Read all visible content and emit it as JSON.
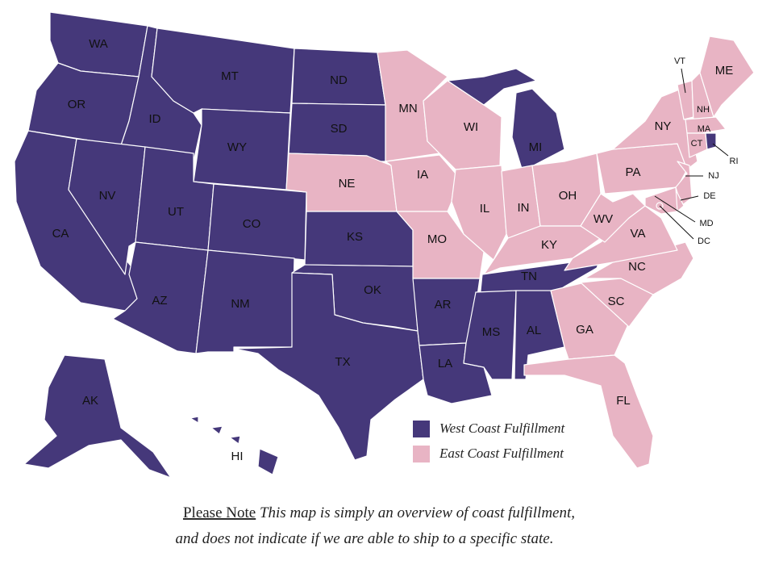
{
  "map": {
    "states": [
      {
        "label": "WA",
        "color": "#45387a"
      },
      {
        "label": "OR",
        "color": "#45387a"
      },
      {
        "label": "CA",
        "color": "#45387a"
      },
      {
        "label": "ID",
        "color": "#45387a"
      },
      {
        "label": "NV",
        "color": "#45387a"
      },
      {
        "label": "MT",
        "color": "#45387a"
      },
      {
        "label": "WY",
        "color": "#45387a"
      },
      {
        "label": "UT",
        "color": "#45387a"
      },
      {
        "label": "AZ",
        "color": "#45387a"
      },
      {
        "label": "CO",
        "color": "#45387a"
      },
      {
        "label": "NM",
        "color": "#45387a"
      },
      {
        "label": "ND",
        "color": "#45387a"
      },
      {
        "label": "SD",
        "color": "#45387a"
      },
      {
        "label": "NE",
        "color": "#e8b4c4"
      },
      {
        "label": "KS",
        "color": "#45387a"
      },
      {
        "label": "OK",
        "color": "#45387a"
      },
      {
        "label": "TX",
        "color": "#45387a"
      },
      {
        "label": "MN",
        "color": "#e8b4c4"
      },
      {
        "label": "IA",
        "color": "#e8b4c4"
      },
      {
        "label": "MO",
        "color": "#e8b4c4"
      },
      {
        "label": "AR",
        "color": "#45387a"
      },
      {
        "label": "LA",
        "color": "#45387a"
      },
      {
        "label": "WI",
        "color": "#e8b4c4"
      },
      {
        "label": "IL",
        "color": "#e8b4c4"
      },
      {
        "label": "MI",
        "color": "#45387a"
      },
      {
        "label": "IN",
        "color": "#e8b4c4"
      },
      {
        "label": "OH",
        "color": "#e8b4c4"
      },
      {
        "label": "KY",
        "color": "#e8b4c4"
      },
      {
        "label": "TN",
        "color": "#45387a"
      },
      {
        "label": "MS",
        "color": "#45387a"
      },
      {
        "label": "AL",
        "color": "#45387a"
      },
      {
        "label": "GA",
        "color": "#e8b4c4"
      },
      {
        "label": "FL",
        "color": "#e8b4c4"
      },
      {
        "label": "SC",
        "color": "#e8b4c4"
      },
      {
        "label": "NC",
        "color": "#e8b4c4"
      },
      {
        "label": "VA",
        "color": "#e8b4c4"
      },
      {
        "label": "WV",
        "color": "#e8b4c4"
      },
      {
        "label": "PA",
        "color": "#e8b4c4"
      },
      {
        "label": "NY",
        "color": "#e8b4c4"
      },
      {
        "label": "VT",
        "color": "#e8b4c4"
      },
      {
        "label": "NH",
        "color": "#e8b4c4"
      },
      {
        "label": "ME",
        "color": "#e8b4c4"
      },
      {
        "label": "MA",
        "color": "#e8b4c4"
      },
      {
        "label": "CT",
        "color": "#e8b4c4"
      },
      {
        "label": "RI",
        "color": "#45387a"
      },
      {
        "label": "NJ",
        "color": "#e8b4c4"
      },
      {
        "label": "DE",
        "color": "#e8b4c4"
      },
      {
        "label": "MD",
        "color": "#e8b4c4"
      },
      {
        "label": "DC",
        "color": "#e8b4c4"
      },
      {
        "label": "AK",
        "color": "#45387a"
      },
      {
        "label": "HI",
        "color": "#45387a"
      }
    ]
  },
  "legend": [
    {
      "label": "West Coast Fulfillment",
      "color": "#45387a"
    },
    {
      "label": "East Coast Fulfillment",
      "color": "#e8b4c4"
    }
  ],
  "note": {
    "emphasis": "Please Note",
    "line1": "This map is simply an overview of coast fulfillment,",
    "line2": "and does not indicate if we are able to ship to a specific state."
  }
}
